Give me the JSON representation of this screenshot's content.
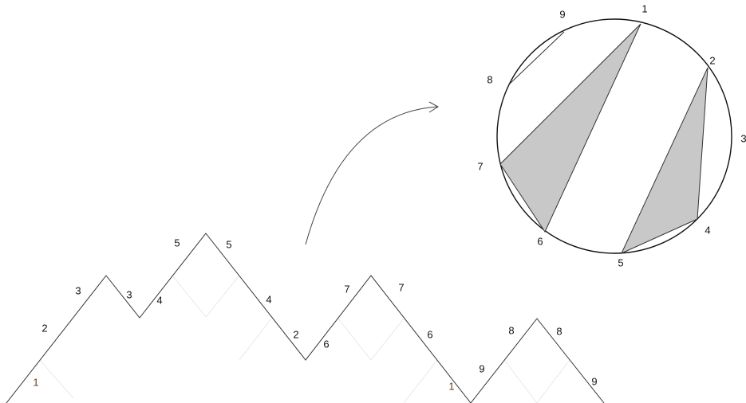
{
  "mountain_path": {
    "labels": [
      {
        "id": "up-1",
        "text": "1",
        "color": "#6b3a1f"
      },
      {
        "id": "up-2",
        "text": "2"
      },
      {
        "id": "up-3",
        "text": "3"
      },
      {
        "id": "down-3",
        "text": "3"
      },
      {
        "id": "up-4",
        "text": "4"
      },
      {
        "id": "up-5",
        "text": "5"
      },
      {
        "id": "down-5",
        "text": "5"
      },
      {
        "id": "down-4",
        "text": "4"
      },
      {
        "id": "down-2",
        "text": "2"
      },
      {
        "id": "up-6",
        "text": "6"
      },
      {
        "id": "up-7",
        "text": "7"
      },
      {
        "id": "down-7",
        "text": "7"
      },
      {
        "id": "down-6",
        "text": "6"
      },
      {
        "id": "down-1",
        "text": "1",
        "color": "#6b3a1f"
      },
      {
        "id": "up-9",
        "text": "9"
      },
      {
        "id": "up-8",
        "text": "8"
      },
      {
        "id": "down-8",
        "text": "8"
      },
      {
        "id": "down-9",
        "text": "9"
      }
    ]
  },
  "circle": {
    "point_labels": [
      "1",
      "2",
      "3",
      "4",
      "5",
      "6",
      "7",
      "8",
      "9"
    ],
    "fill_color": "#c8c8c8"
  }
}
